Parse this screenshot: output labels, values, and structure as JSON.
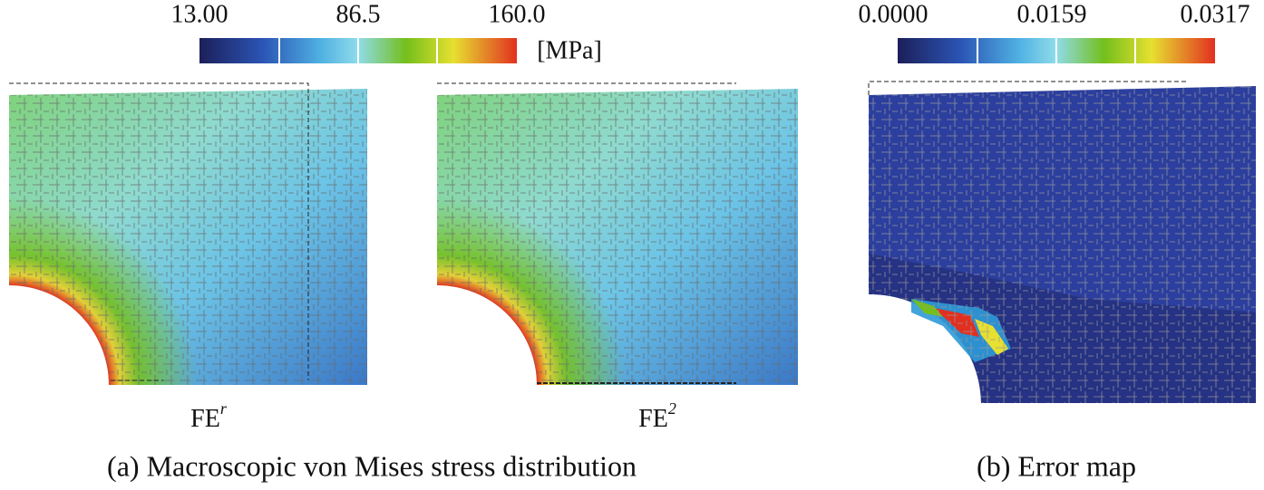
{
  "colorbar_stress": {
    "ticks": [
      "13.00",
      "86.5",
      "160.0"
    ],
    "unit": "[MPa]"
  },
  "colorbar_error": {
    "ticks": [
      "0.0000",
      "0.0159",
      "0.0317"
    ]
  },
  "panels": [
    {
      "label": "FE",
      "superscript": "r"
    },
    {
      "label": "FE",
      "superscript": "2"
    }
  ],
  "captions": [
    "(a) Macroscopic von Mises stress distribution",
    "(b) Error map"
  ]
}
